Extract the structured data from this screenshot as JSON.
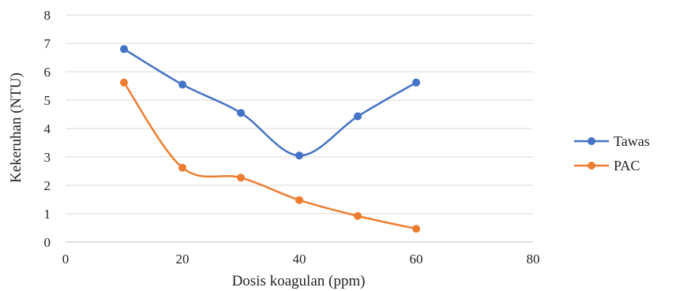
{
  "chart_data": {
    "type": "line",
    "title": "",
    "xlabel": "Dosis koagulan (ppm)",
    "ylabel": "Kekeruhan (NTU)",
    "xlim": [
      0,
      80
    ],
    "ylim": [
      0,
      8
    ],
    "xticks": [
      "0",
      "20",
      "40",
      "60",
      "80"
    ],
    "yticks": [
      "0",
      "1",
      "2",
      "3",
      "4",
      "5",
      "6",
      "7",
      "8"
    ],
    "grid": true,
    "smooth": true,
    "legend_position": "right",
    "series": [
      {
        "name": "Tawas",
        "color": "#4472C4",
        "x": [
          10,
          20,
          30,
          40,
          50,
          60
        ],
        "y": [
          6.8,
          5.55,
          4.55,
          3.05,
          4.43,
          5.62
        ]
      },
      {
        "name": "PAC",
        "color": "#ED7D31",
        "x": [
          10,
          20,
          30,
          40,
          50,
          60
        ],
        "y": [
          5.62,
          2.62,
          2.27,
          1.48,
          0.92,
          0.47
        ]
      }
    ]
  }
}
